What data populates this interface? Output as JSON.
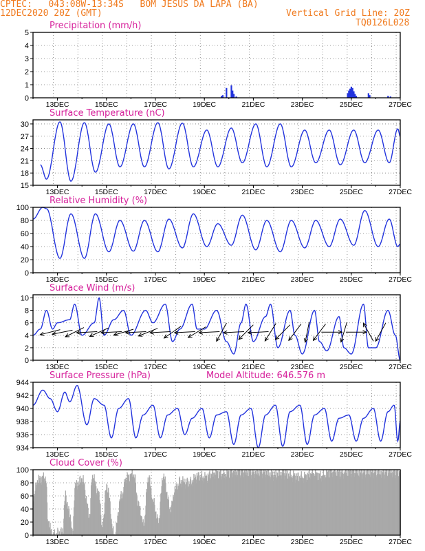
{
  "header": {
    "station_line": "CPTEC:   043:08W-13:34S   BOM JESUS DA LAPA (BA)",
    "date_line": "12DEC2020 20Z (GMT)",
    "grid_line_label": "Vertical Grid Line: 20Z",
    "run_code": "TQ0126L028"
  },
  "chart_data": [
    {
      "type": "bar",
      "title": "Precipitation (mm/h)",
      "x_ticks": [
        "13DEC",
        "15DEC",
        "17DEC",
        "19DEC",
        "21DEC",
        "23DEC",
        "25DEC",
        "27DEC"
      ],
      "ylim": [
        0,
        5
      ],
      "y_ticks": [
        0,
        1,
        2,
        3,
        4,
        5
      ],
      "grid": true,
      "values": [
        {
          "day": 19.7,
          "v": 0.15
        },
        {
          "day": 19.75,
          "v": 0.2
        },
        {
          "day": 19.9,
          "v": 0.75
        },
        {
          "day": 20.1,
          "v": 0.95
        },
        {
          "day": 20.15,
          "v": 0.55
        },
        {
          "day": 20.2,
          "v": 0.3
        },
        {
          "day": 20.3,
          "v": 0.1
        },
        {
          "day": 24.85,
          "v": 0.35
        },
        {
          "day": 24.9,
          "v": 0.55
        },
        {
          "day": 24.95,
          "v": 0.7
        },
        {
          "day": 25.0,
          "v": 0.85
        },
        {
          "day": 25.05,
          "v": 0.75
        },
        {
          "day": 25.1,
          "v": 0.5
        },
        {
          "day": 25.15,
          "v": 0.3
        },
        {
          "day": 25.2,
          "v": 0.15
        },
        {
          "day": 25.7,
          "v": 0.35
        },
        {
          "day": 25.75,
          "v": 0.2
        },
        {
          "day": 26.5,
          "v": 0.15
        },
        {
          "day": 26.6,
          "v": 0.1
        }
      ]
    },
    {
      "type": "line",
      "title": "Surface Temperature (nC)",
      "x_ticks": [
        "13DEC",
        "15DEC",
        "17DEC",
        "19DEC",
        "21DEC",
        "23DEC",
        "25DEC",
        "27DEC"
      ],
      "ylim": [
        15,
        31
      ],
      "y_ticks": [
        15,
        18,
        21,
        24,
        27,
        30
      ],
      "grid": true,
      "minmax": [
        {
          "day": 12.3,
          "v": 20
        },
        {
          "day": 12.55,
          "v": 16.5
        },
        {
          "day": 13.1,
          "v": 30.5
        },
        {
          "day": 13.55,
          "v": 16
        },
        {
          "day": 14.1,
          "v": 30.3
        },
        {
          "day": 14.55,
          "v": 18.2
        },
        {
          "day": 15.1,
          "v": 30
        },
        {
          "day": 15.55,
          "v": 19.5
        },
        {
          "day": 16.1,
          "v": 30
        },
        {
          "day": 16.55,
          "v": 19.5
        },
        {
          "day": 17.1,
          "v": 30.3
        },
        {
          "day": 17.55,
          "v": 19
        },
        {
          "day": 18.1,
          "v": 30.2
        },
        {
          "day": 18.55,
          "v": 19.5
        },
        {
          "day": 19.1,
          "v": 28.5
        },
        {
          "day": 19.55,
          "v": 19.5
        },
        {
          "day": 20.1,
          "v": 29
        },
        {
          "day": 20.55,
          "v": 20.5
        },
        {
          "day": 21.1,
          "v": 30
        },
        {
          "day": 21.55,
          "v": 19.5
        },
        {
          "day": 22.1,
          "v": 30
        },
        {
          "day": 22.55,
          "v": 19.5
        },
        {
          "day": 23.1,
          "v": 28.5
        },
        {
          "day": 23.55,
          "v": 20.5
        },
        {
          "day": 24.1,
          "v": 28.5
        },
        {
          "day": 24.55,
          "v": 20
        },
        {
          "day": 25.1,
          "v": 28.5
        },
        {
          "day": 25.55,
          "v": 20.5
        },
        {
          "day": 26.1,
          "v": 28.5
        },
        {
          "day": 26.55,
          "v": 20.5
        },
        {
          "day": 26.9,
          "v": 28.8
        },
        {
          "day": 27.0,
          "v": 27
        }
      ]
    },
    {
      "type": "line",
      "title": "Relative Humidity (%)",
      "x_ticks": [
        "13DEC",
        "15DEC",
        "17DEC",
        "19DEC",
        "21DEC",
        "23DEC",
        "25DEC",
        "27DEC"
      ],
      "ylim": [
        0,
        100
      ],
      "y_ticks": [
        0,
        20,
        40,
        60,
        80,
        100
      ],
      "grid": true,
      "minmax": [
        {
          "day": 12.0,
          "v": 82
        },
        {
          "day": 12.4,
          "v": 100
        },
        {
          "day": 12.55,
          "v": 98
        },
        {
          "day": 13.1,
          "v": 22
        },
        {
          "day": 13.55,
          "v": 90
        },
        {
          "day": 14.1,
          "v": 22
        },
        {
          "day": 14.55,
          "v": 90
        },
        {
          "day": 15.1,
          "v": 32
        },
        {
          "day": 15.55,
          "v": 80
        },
        {
          "day": 16.1,
          "v": 33
        },
        {
          "day": 16.55,
          "v": 80
        },
        {
          "day": 17.1,
          "v": 32
        },
        {
          "day": 17.55,
          "v": 82
        },
        {
          "day": 18.1,
          "v": 38
        },
        {
          "day": 18.55,
          "v": 90
        },
        {
          "day": 19.1,
          "v": 40
        },
        {
          "day": 19.55,
          "v": 75
        },
        {
          "day": 20.1,
          "v": 42
        },
        {
          "day": 20.55,
          "v": 88
        },
        {
          "day": 21.1,
          "v": 35
        },
        {
          "day": 21.55,
          "v": 80
        },
        {
          "day": 22.1,
          "v": 32
        },
        {
          "day": 22.55,
          "v": 80
        },
        {
          "day": 23.1,
          "v": 38
        },
        {
          "day": 23.55,
          "v": 80
        },
        {
          "day": 24.1,
          "v": 40
        },
        {
          "day": 24.55,
          "v": 82
        },
        {
          "day": 25.1,
          "v": 42
        },
        {
          "day": 25.55,
          "v": 95
        },
        {
          "day": 26.1,
          "v": 40
        },
        {
          "day": 26.55,
          "v": 82
        },
        {
          "day": 26.9,
          "v": 40
        },
        {
          "day": 27.0,
          "v": 44
        }
      ]
    },
    {
      "type": "line",
      "title": "Surface Wind (m/s)",
      "x_ticks": [
        "13DEC",
        "15DEC",
        "17DEC",
        "19DEC",
        "21DEC",
        "23DEC",
        "25DEC",
        "27DEC"
      ],
      "ylim": [
        0,
        10.5
      ],
      "y_ticks": [
        0,
        2,
        4,
        6,
        8,
        10
      ],
      "grid": true,
      "minmax": [
        {
          "day": 12.0,
          "v": 4
        },
        {
          "day": 12.3,
          "v": 5
        },
        {
          "day": 12.55,
          "v": 8
        },
        {
          "day": 12.8,
          "v": 5
        },
        {
          "day": 13.0,
          "v": 6
        },
        {
          "day": 13.5,
          "v": 6.5
        },
        {
          "day": 13.7,
          "v": 9
        },
        {
          "day": 14.0,
          "v": 4
        },
        {
          "day": 14.5,
          "v": 6
        },
        {
          "day": 14.7,
          "v": 10
        },
        {
          "day": 14.9,
          "v": 4
        },
        {
          "day": 15.3,
          "v": 6.5
        },
        {
          "day": 15.7,
          "v": 8
        },
        {
          "day": 16.0,
          "v": 4
        },
        {
          "day": 16.6,
          "v": 8
        },
        {
          "day": 16.9,
          "v": 6
        },
        {
          "day": 17.4,
          "v": 9
        },
        {
          "day": 17.7,
          "v": 3
        },
        {
          "day": 18.0,
          "v": 5
        },
        {
          "day": 18.5,
          "v": 9
        },
        {
          "day": 18.7,
          "v": 5
        },
        {
          "day": 19.0,
          "v": 5
        },
        {
          "day": 19.5,
          "v": 8
        },
        {
          "day": 19.9,
          "v": 3
        },
        {
          "day": 20.2,
          "v": 1
        },
        {
          "day": 20.5,
          "v": 6
        },
        {
          "day": 20.7,
          "v": 9
        },
        {
          "day": 21.0,
          "v": 3
        },
        {
          "day": 21.5,
          "v": 7
        },
        {
          "day": 21.7,
          "v": 9
        },
        {
          "day": 22.0,
          "v": 2
        },
        {
          "day": 22.5,
          "v": 8
        },
        {
          "day": 22.7,
          "v": 4
        },
        {
          "day": 23.0,
          "v": 1
        },
        {
          "day": 23.5,
          "v": 8
        },
        {
          "day": 23.7,
          "v": 3
        },
        {
          "day": 24.0,
          "v": 1.5
        },
        {
          "day": 24.5,
          "v": 7
        },
        {
          "day": 24.7,
          "v": 2
        },
        {
          "day": 25.0,
          "v": 1
        },
        {
          "day": 25.5,
          "v": 9
        },
        {
          "day": 25.7,
          "v": 2
        },
        {
          "day": 26.0,
          "v": 2
        },
        {
          "day": 26.5,
          "v": 8
        },
        {
          "day": 26.8,
          "v": 4
        },
        {
          "day": 27.0,
          "v": 0
        }
      ],
      "arrows": [
        {
          "day": 12.7,
          "dx": -1,
          "dy": 0.25
        },
        {
          "day": 13.2,
          "dx": -1,
          "dy": 0.2
        },
        {
          "day": 13.7,
          "dx": -1,
          "dy": 0.5
        },
        {
          "day": 14.2,
          "dx": -1,
          "dy": 0.05
        },
        {
          "day": 14.7,
          "dx": -1,
          "dy": 0.45
        },
        {
          "day": 15.2,
          "dx": -1,
          "dy": 0.05
        },
        {
          "day": 15.7,
          "dx": -1,
          "dy": 0.3
        },
        {
          "day": 16.2,
          "dx": -1,
          "dy": 0.05
        },
        {
          "day": 16.7,
          "dx": -1,
          "dy": 0.4
        },
        {
          "day": 17.2,
          "dx": -1,
          "dy": 0.05
        },
        {
          "day": 17.7,
          "dx": -1,
          "dy": 0.7
        },
        {
          "day": 18.2,
          "dx": -1,
          "dy": 0.05
        },
        {
          "day": 18.7,
          "dx": -1,
          "dy": 0.6
        },
        {
          "day": 19.2,
          "dx": -1,
          "dy": 0.05
        },
        {
          "day": 19.7,
          "dx": -0.5,
          "dy": 0.9
        },
        {
          "day": 20.2,
          "dx": -1,
          "dy": 0.05
        },
        {
          "day": 20.7,
          "dx": -0.7,
          "dy": 0.7
        },
        {
          "day": 21.2,
          "dx": -1,
          "dy": 0.05
        },
        {
          "day": 21.7,
          "dx": -0.5,
          "dy": 0.8
        },
        {
          "day": 22.2,
          "dx": -0.5,
          "dy": 0.5
        },
        {
          "day": 22.7,
          "dx": -0.6,
          "dy": 0.8
        },
        {
          "day": 23.2,
          "dx": -0.2,
          "dy": 1
        },
        {
          "day": 23.7,
          "dx": -0.6,
          "dy": 0.8
        },
        {
          "day": 24.2,
          "dx": 1,
          "dy": 0
        },
        {
          "day": 24.7,
          "dx": -0.3,
          "dy": 1
        },
        {
          "day": 25.2,
          "dx": 1,
          "dy": 0
        },
        {
          "day": 25.7,
          "dx": -0.5,
          "dy": -0.9
        },
        {
          "day": 26.2,
          "dx": -0.5,
          "dy": 0.9
        }
      ]
    },
    {
      "type": "line",
      "title": "Surface Pressure (hPa)",
      "annotation": "Model Altitude: 646.576 m",
      "x_ticks": [
        "13DEC",
        "15DEC",
        "17DEC",
        "19DEC",
        "21DEC",
        "23DEC",
        "25DEC",
        "27DEC"
      ],
      "ylim": [
        934,
        944
      ],
      "y_ticks": [
        934,
        936,
        938,
        940,
        942,
        944
      ],
      "grid": true,
      "minmax": [
        {
          "day": 12.0,
          "v": 940.5
        },
        {
          "day": 12.4,
          "v": 942.8
        },
        {
          "day": 12.7,
          "v": 941.5
        },
        {
          "day": 13.0,
          "v": 939.5
        },
        {
          "day": 13.3,
          "v": 942.5
        },
        {
          "day": 13.5,
          "v": 941
        },
        {
          "day": 13.8,
          "v": 943.5
        },
        {
          "day": 14.2,
          "v": 937.5
        },
        {
          "day": 14.5,
          "v": 941.5
        },
        {
          "day": 14.9,
          "v": 940.5
        },
        {
          "day": 15.2,
          "v": 935.5
        },
        {
          "day": 15.5,
          "v": 940
        },
        {
          "day": 15.9,
          "v": 941.5
        },
        {
          "day": 16.2,
          "v": 935.5
        },
        {
          "day": 16.5,
          "v": 939
        },
        {
          "day": 16.9,
          "v": 940.5
        },
        {
          "day": 17.2,
          "v": 935.5
        },
        {
          "day": 17.5,
          "v": 939
        },
        {
          "day": 17.9,
          "v": 940
        },
        {
          "day": 18.2,
          "v": 936
        },
        {
          "day": 18.5,
          "v": 938.5
        },
        {
          "day": 18.9,
          "v": 940
        },
        {
          "day": 19.2,
          "v": 935.5
        },
        {
          "day": 19.5,
          "v": 939
        },
        {
          "day": 19.9,
          "v": 939.5
        },
        {
          "day": 20.2,
          "v": 934.5
        },
        {
          "day": 20.5,
          "v": 939
        },
        {
          "day": 20.9,
          "v": 940
        },
        {
          "day": 21.2,
          "v": 934
        },
        {
          "day": 21.5,
          "v": 939
        },
        {
          "day": 21.9,
          "v": 940.5
        },
        {
          "day": 22.2,
          "v": 934.2
        },
        {
          "day": 22.5,
          "v": 939.5
        },
        {
          "day": 22.9,
          "v": 940.5
        },
        {
          "day": 23.2,
          "v": 934.5
        },
        {
          "day": 23.5,
          "v": 939
        },
        {
          "day": 23.9,
          "v": 940
        },
        {
          "day": 24.2,
          "v": 935
        },
        {
          "day": 24.5,
          "v": 938.5
        },
        {
          "day": 24.9,
          "v": 939
        },
        {
          "day": 25.2,
          "v": 935
        },
        {
          "day": 25.5,
          "v": 938.5
        },
        {
          "day": 25.9,
          "v": 940
        },
        {
          "day": 26.2,
          "v": 935
        },
        {
          "day": 26.5,
          "v": 939.5
        },
        {
          "day": 26.75,
          "v": 940.5
        },
        {
          "day": 26.9,
          "v": 935
        },
        {
          "day": 27.0,
          "v": 938
        }
      ]
    },
    {
      "type": "bar",
      "title": "Cloud Cover (%)",
      "x_ticks": [
        "13DEC",
        "15DEC",
        "17DEC",
        "19DEC",
        "21DEC",
        "23DEC",
        "25DEC",
        "27DEC"
      ],
      "ylim": [
        0,
        100
      ],
      "y_ticks": [
        0,
        20,
        40,
        60,
        80,
        100
      ],
      "grid": true,
      "profile": [
        {
          "day": 12.0,
          "v": 60
        },
        {
          "day": 12.2,
          "v": 85
        },
        {
          "day": 12.5,
          "v": 88
        },
        {
          "day": 12.6,
          "v": 20
        },
        {
          "day": 12.8,
          "v": 0
        },
        {
          "day": 13.2,
          "v": 5
        },
        {
          "day": 13.3,
          "v": 60
        },
        {
          "day": 13.5,
          "v": 30
        },
        {
          "day": 13.6,
          "v": 0
        },
        {
          "day": 13.7,
          "v": 75
        },
        {
          "day": 14.0,
          "v": 85
        },
        {
          "day": 14.3,
          "v": 30
        },
        {
          "day": 14.4,
          "v": 90
        },
        {
          "day": 14.7,
          "v": 60
        },
        {
          "day": 14.8,
          "v": 10
        },
        {
          "day": 15.0,
          "v": 75
        },
        {
          "day": 15.3,
          "v": 0
        },
        {
          "day": 15.6,
          "v": 60
        },
        {
          "day": 15.8,
          "v": 88
        },
        {
          "day": 16.1,
          "v": 92
        },
        {
          "day": 16.3,
          "v": 45
        },
        {
          "day": 16.5,
          "v": 15
        },
        {
          "day": 16.7,
          "v": 88
        },
        {
          "day": 16.9,
          "v": 50
        },
        {
          "day": 17.1,
          "v": 20
        },
        {
          "day": 17.3,
          "v": 90
        },
        {
          "day": 17.6,
          "v": 40
        },
        {
          "day": 17.8,
          "v": 70
        },
        {
          "day": 18.0,
          "v": 82
        },
        {
          "day": 18.4,
          "v": 80
        },
        {
          "day": 18.7,
          "v": 90
        },
        {
          "day": 19.0,
          "v": 88
        },
        {
          "day": 19.4,
          "v": 95
        },
        {
          "day": 19.8,
          "v": 93
        },
        {
          "day": 20.2,
          "v": 97
        },
        {
          "day": 20.6,
          "v": 97
        },
        {
          "day": 21.0,
          "v": 96
        },
        {
          "day": 21.4,
          "v": 97
        },
        {
          "day": 21.8,
          "v": 92
        },
        {
          "day": 22.2,
          "v": 95
        },
        {
          "day": 22.6,
          "v": 90
        },
        {
          "day": 23.0,
          "v": 88
        },
        {
          "day": 23.4,
          "v": 94
        },
        {
          "day": 23.8,
          "v": 90
        },
        {
          "day": 24.2,
          "v": 97
        },
        {
          "day": 24.6,
          "v": 95
        },
        {
          "day": 25.0,
          "v": 98
        },
        {
          "day": 25.4,
          "v": 96
        },
        {
          "day": 25.8,
          "v": 97
        },
        {
          "day": 26.2,
          "v": 96
        },
        {
          "day": 26.6,
          "v": 97
        },
        {
          "day": 27.0,
          "v": 96
        }
      ]
    }
  ],
  "colors": {
    "header": "#f07a1e",
    "title": "#d6209b",
    "line": "#2233dd",
    "precip_bar": "#2233dd",
    "cloud_fill": "#a9a9a9",
    "arrow": "#000000"
  }
}
